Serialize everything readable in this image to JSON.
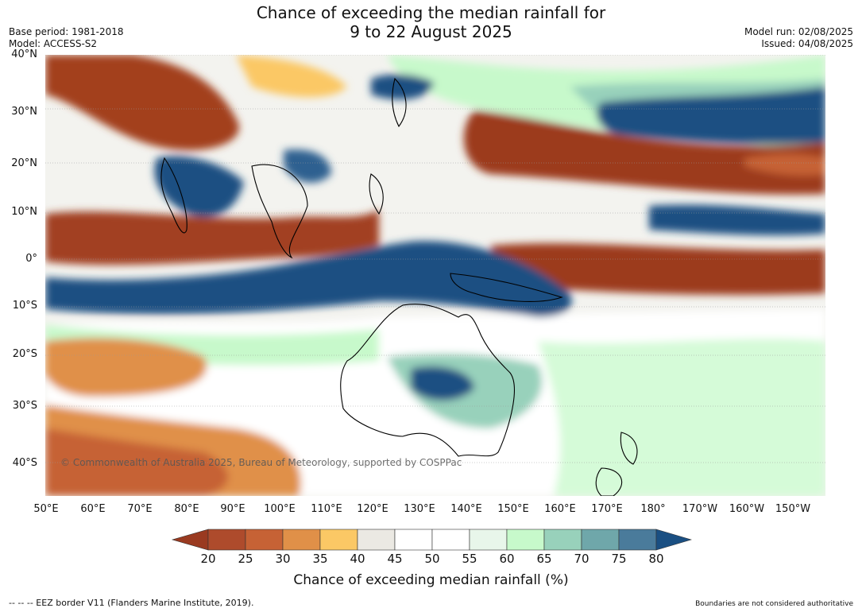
{
  "header": {
    "title_line1": "Chance of exceeding the median rainfall for",
    "title_line2": "9 to 22 August 2025",
    "base_period": "Base period: 1981-2018",
    "model": "Model: ACCESS-S2",
    "model_run": "Model run: 02/08/2025",
    "issued": "Issued: 04/08/2025"
  },
  "axes": {
    "lat_labels": [
      "40°N",
      "30°N",
      "20°N",
      "10°N",
      "0°",
      "10°S",
      "20°S",
      "30°S",
      "40°S"
    ],
    "lon_labels": [
      "50°E",
      "60°E",
      "70°E",
      "80°E",
      "90°E",
      "100°E",
      "110°E",
      "120°E",
      "130°E",
      "140°E",
      "150°E",
      "160°E",
      "170°E",
      "180°",
      "170°W",
      "160°W",
      "150°W"
    ]
  },
  "map": {
    "copyright": "© Commonwealth of Australia 2025, Bureau of Meteorology, supported by COSPPac"
  },
  "colorbar": {
    "title": "Chance of exceeding median rainfall (%)",
    "ticks": [
      "20",
      "25",
      "30",
      "35",
      "40",
      "45",
      "50",
      "55",
      "60",
      "65",
      "70",
      "75",
      "80"
    ],
    "colors": [
      "#9a3a20",
      "#ae4b2c",
      "#c66235",
      "#e09048",
      "#fbc865",
      "#ebe9e3",
      "#ffffff",
      "#ffffff",
      "#e8f6ea",
      "#c7f9cb",
      "#98d1bb",
      "#6fa7aa",
      "#4a7b9b",
      "#1a4f82"
    ]
  },
  "footer": {
    "eez_note": "--  --  -- EEZ border V11 (Flanders Marine Institute, 2019).",
    "disclaimer": "Boundaries are not considered authoritative"
  }
}
